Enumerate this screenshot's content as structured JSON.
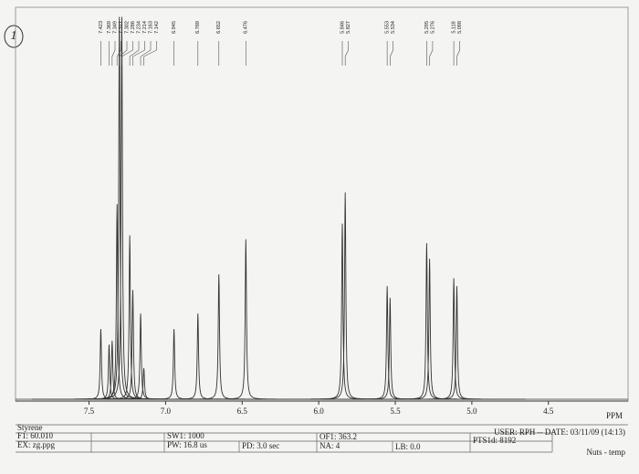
{
  "chart_data": {
    "type": "spectrum",
    "x_label": "PPM",
    "x": [
      7.423,
      7.369,
      7.349,
      7.317,
      7.302,
      7.286,
      7.234,
      7.214,
      7.163,
      7.142,
      6.945,
      6.789,
      6.652,
      6.476,
      5.846,
      5.827,
      5.553,
      5.534,
      5.295,
      5.276,
      5.118,
      5.098
    ],
    "values": [
      18,
      14,
      15,
      50,
      98,
      98,
      42,
      28,
      22,
      8,
      18,
      22,
      32,
      41,
      45,
      53,
      29,
      26,
      40,
      36,
      31,
      29
    ],
    "color": "#333333",
    "xlim": [
      7.98,
      3.98
    ],
    "xticks": [
      7.5,
      {
        "value": 7,
        "label": "7.0"
      },
      6.5,
      {
        "value": 6,
        "label": "6.0"
      },
      5.5,
      {
        "value": 5,
        "label": "5.0"
      },
      4.5
    ],
    "ylim": [
      0,
      100
    ]
  },
  "page_number": "1",
  "parameters": {
    "sample": "Styrene",
    "f1": "F1: 60.010",
    "ex": "EX: zg.ppg",
    "sw1": "SW1: 1000",
    "pw": "PW: 16.8 us",
    "pd": "PD: 3.0  sec",
    "of1": "OF1: 363.2",
    "na": "NA: 4",
    "lb": "LB: 0.0",
    "user": "USER: RPH -- DATE: 03/11/09  (14:13)",
    "pts": "PTS1d: 8192",
    "program": "Nuts - temp"
  }
}
